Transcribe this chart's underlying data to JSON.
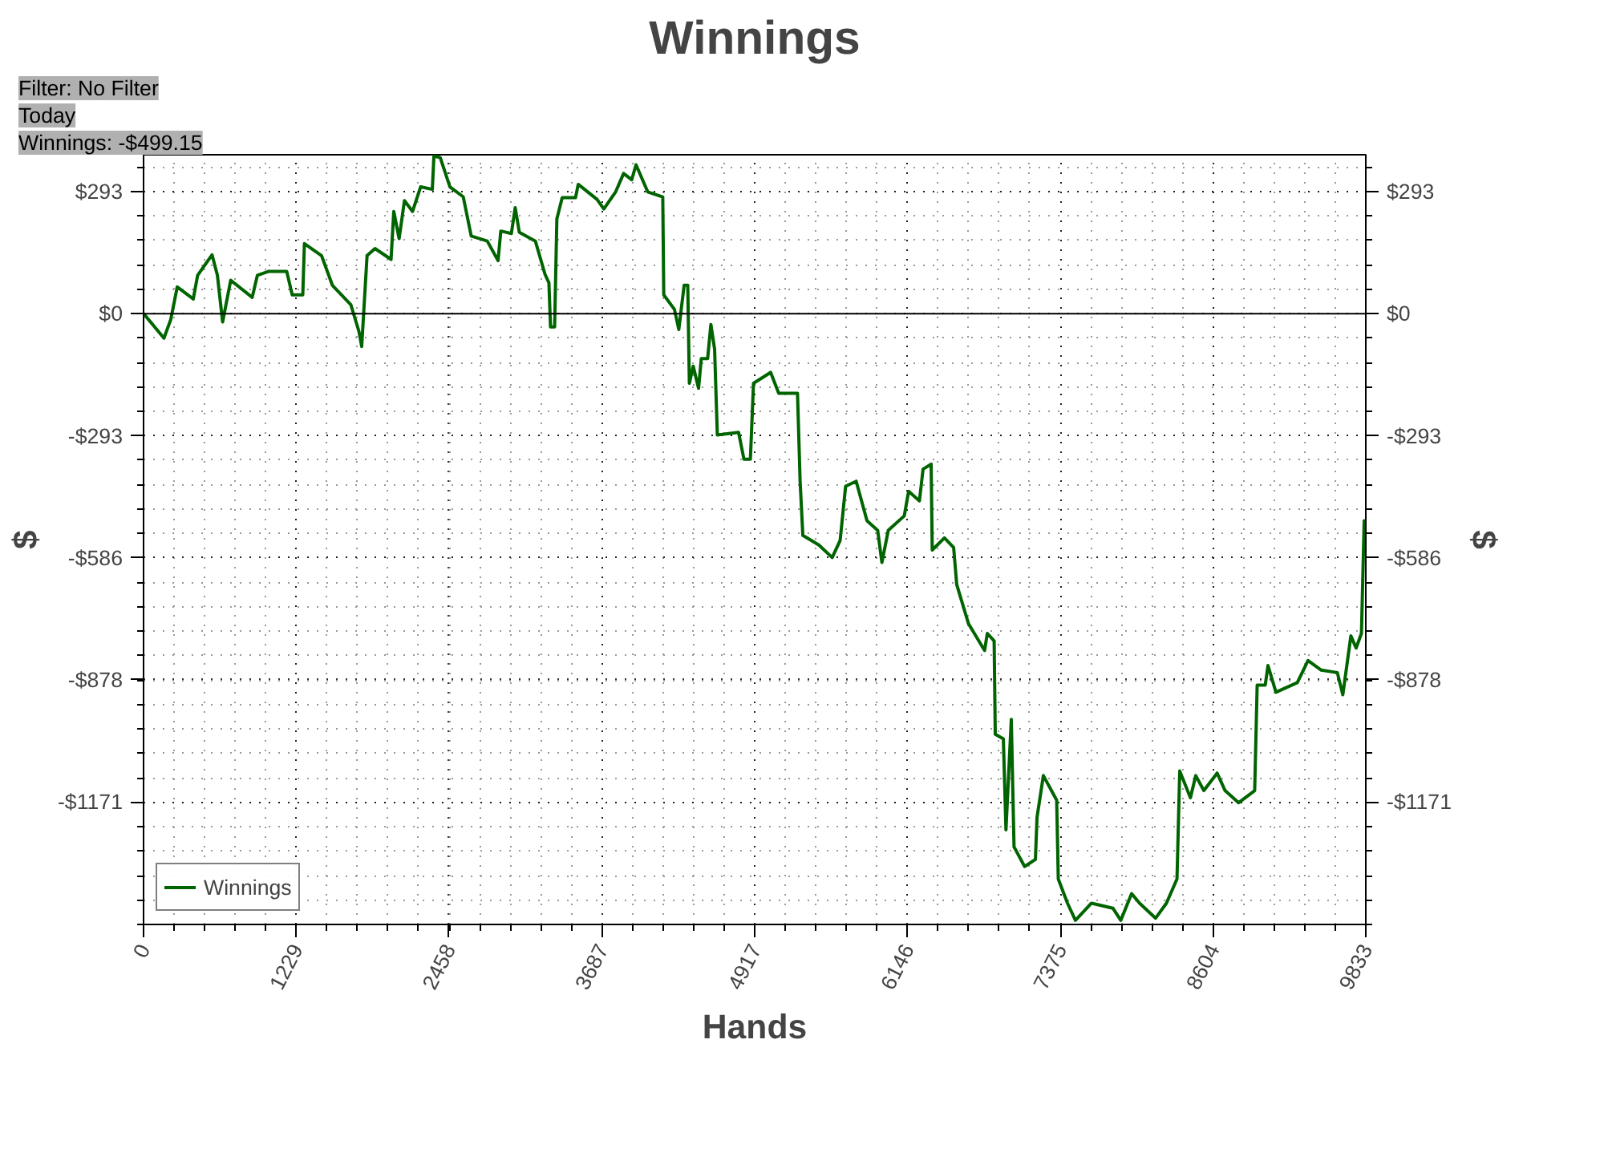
{
  "chart_data": {
    "type": "line",
    "title": "Winnings",
    "xlabel": "Hands",
    "ylabel": "$",
    "y2label": "$",
    "annotations": [
      "Filter: No Filter",
      "Today",
      "Winnings: -$499.15"
    ],
    "xlim": [
      0,
      9833
    ],
    "xticks": [
      0,
      1229,
      2458,
      3687,
      4917,
      6146,
      7375,
      8604,
      9833
    ],
    "ylim": [
      -1465,
      381
    ],
    "yticks": [
      {
        "value": 293,
        "label": "$293"
      },
      {
        "value": 0,
        "label": "$0"
      },
      {
        "value": -293,
        "label": "-$293"
      },
      {
        "value": -586,
        "label": "-$586"
      },
      {
        "value": -878,
        "label": "-$878"
      },
      {
        "value": -1171,
        "label": "-$1171"
      }
    ],
    "y2lim": [
      -1465,
      381
    ],
    "y2ticks": [
      {
        "value": 293,
        "label": "$293"
      },
      {
        "value": 0,
        "label": "$0"
      },
      {
        "value": -293,
        "label": "-$293"
      },
      {
        "value": -586,
        "label": "-$586"
      },
      {
        "value": -878,
        "label": "-$878"
      },
      {
        "value": -1171,
        "label": "-$1171"
      }
    ],
    "grid": true,
    "legend": "bottom left",
    "line_style": "solid",
    "ref_lines": [
      {
        "axis": "y",
        "value": 0,
        "color": "#000000"
      }
    ],
    "series": [
      {
        "name": "Winnings",
        "color": "#006400",
        "x": [
          0,
          164,
          219,
          271,
          400,
          435,
          551,
          594,
          636,
          701,
          874,
          916,
          1003,
          1152,
          1196,
          1281,
          1294,
          1432,
          1519,
          1668,
          1733,
          1755,
          1798,
          1862,
          1991,
          2013,
          2056,
          2099,
          2164,
          2229,
          2323,
          2336,
          2387,
          2465,
          2572,
          2636,
          2765,
          2852,
          2874,
          2959,
          2990,
          3023,
          3152,
          3230,
          3261,
          3274,
          3307,
          3325,
          3368,
          3475,
          3497,
          3648,
          3703,
          3798,
          3862,
          3927,
          3962,
          4056,
          4177,
          4185,
          4271,
          4306,
          4349,
          4378,
          4391,
          4422,
          4465,
          4487,
          4538,
          4564,
          4594,
          4616,
          4787,
          4830,
          4882,
          4907,
          5045,
          5110,
          5261,
          5282,
          5304,
          5433,
          5540,
          5604,
          5648,
          5733,
          5820,
          5906,
          5940,
          5991,
          6120,
          6155,
          6242,
          6271,
          6336,
          6345,
          6443,
          6517,
          6542,
          6637,
          6766,
          6788,
          6843,
          6852,
          6917,
          6938,
          6981,
          7003,
          7088,
          7175,
          7188,
          7239,
          7346,
          7359,
          7433,
          7497,
          7626,
          7798,
          7862,
          7949,
          8013,
          8142,
          8229,
          8314,
          8336,
          8422,
          8465,
          8530,
          8637,
          8701,
          8810,
          8939,
          8959,
          9024,
          9046,
          9110,
          9282,
          9368,
          9475,
          9604,
          9648,
          9713,
          9755,
          9798,
          9820,
          9833
        ],
        "values": [
          0,
          -59,
          -14,
          64,
          35,
          92,
          141,
          92,
          -20,
          80,
          39,
          92,
          101,
          101,
          45,
          45,
          168,
          139,
          68,
          21,
          -43,
          -79,
          139,
          156,
          130,
          245,
          180,
          271,
          245,
          304,
          298,
          378,
          374,
          304,
          280,
          186,
          174,
          127,
          198,
          192,
          254,
          195,
          174,
          94,
          74,
          -32,
          -32,
          227,
          278,
          278,
          310,
          274,
          251,
          292,
          336,
          321,
          357,
          292,
          280,
          45,
          10,
          -38,
          68,
          68,
          -167,
          -126,
          -179,
          -108,
          -108,
          -26,
          -85,
          -291,
          -285,
          -349,
          -349,
          -167,
          -141,
          -191,
          -191,
          -402,
          -532,
          -555,
          -585,
          -544,
          -414,
          -402,
          -497,
          -520,
          -597,
          -520,
          -485,
          -426,
          -449,
          -373,
          -361,
          -567,
          -538,
          -561,
          -650,
          -744,
          -808,
          -767,
          -785,
          -1009,
          -1020,
          -1238,
          -973,
          -1279,
          -1326,
          -1309,
          -1208,
          -1108,
          -1167,
          -1356,
          -1414,
          -1455,
          -1414,
          -1426,
          -1455,
          -1391,
          -1414,
          -1450,
          -1414,
          -1356,
          -1097,
          -1161,
          -1108,
          -1144,
          -1102,
          -1144,
          -1173,
          -1144,
          -891,
          -891,
          -844,
          -908,
          -885,
          -832,
          -855,
          -861,
          -914,
          -773,
          -802,
          -767,
          -497,
          -499.15
        ]
      }
    ]
  }
}
